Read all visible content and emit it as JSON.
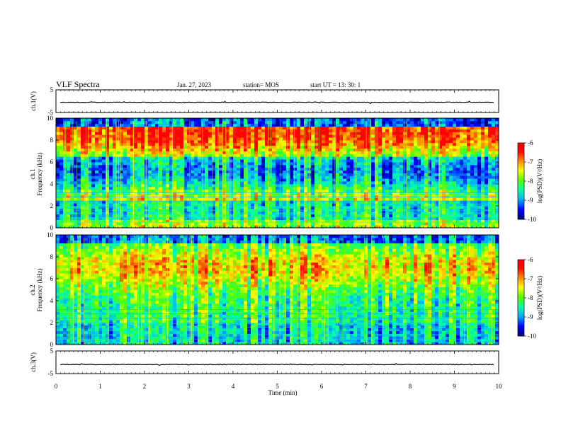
{
  "header": {
    "title": "VLF Spectra",
    "date": "Jan. 27, 2023",
    "station": "station= MOS",
    "start": "start UT = 13: 30: 1"
  },
  "chart_data": [
    {
      "type": "line",
      "name": "ch1-waveform",
      "ylabel": "ch.1(V)",
      "ylim": [
        -5,
        5
      ],
      "xlim": [
        0,
        10
      ],
      "baseline": -0.5,
      "y_ticks": [
        "5",
        "-5"
      ]
    },
    {
      "type": "heatmap",
      "name": "ch1-spectrogram",
      "ylabel_line1": "ch.1",
      "ylabel_line2": "Frequency (kHz)",
      "ylim": [
        0,
        10
      ],
      "xlim": [
        0,
        10
      ],
      "y_ticks": [
        "0",
        "2",
        "4",
        "6",
        "8",
        "10"
      ],
      "colorbar": {
        "label": "log(PSD)(V²/Hz)",
        "range": [
          -10,
          -6
        ],
        "ticks": [
          "-6",
          "-7",
          "-8",
          "-9",
          "-10"
        ]
      }
    },
    {
      "type": "heatmap",
      "name": "ch2-spectrogram",
      "ylabel_line1": "ch.2",
      "ylabel_line2": "Frequency (kHz)",
      "ylim": [
        0,
        10
      ],
      "xlim": [
        0,
        10
      ],
      "y_ticks": [
        "0",
        "2",
        "4",
        "6",
        "8",
        "10"
      ],
      "colorbar": {
        "label": "log(PSD)(V²/Hz)",
        "range": [
          -10,
          -6
        ],
        "ticks": [
          "-6",
          "-7",
          "-8",
          "-9",
          "-10"
        ]
      }
    },
    {
      "type": "line",
      "name": "ch3-waveform",
      "ylabel": "ch.3(V)",
      "ylim": [
        -5,
        5
      ],
      "xlim": [
        0,
        10
      ],
      "baseline": -1.0,
      "y_ticks": [
        "5",
        "-5"
      ]
    }
  ],
  "x_axis": {
    "label": "Time (min)",
    "ticks": [
      "0",
      "1",
      "2",
      "3",
      "4",
      "5",
      "6",
      "7",
      "8",
      "9",
      "10"
    ]
  },
  "colors": {
    "colormap": [
      "#00007a",
      "#0000ff",
      "#00aaff",
      "#00ffaa",
      "#55ff00",
      "#ffff00",
      "#ff8800",
      "#ff0000",
      "#ffffff"
    ]
  }
}
